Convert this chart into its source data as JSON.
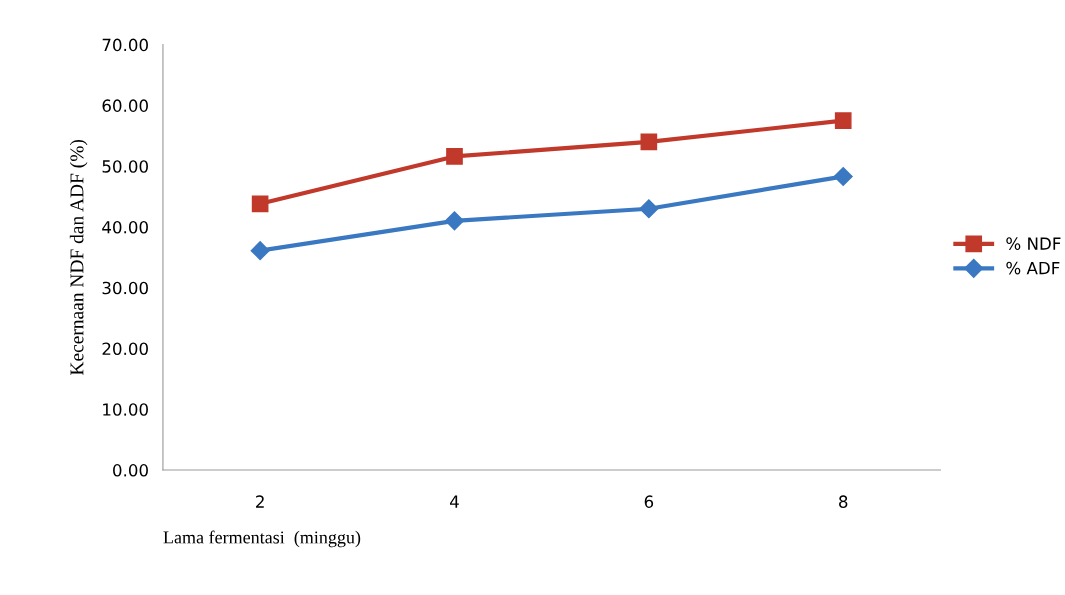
{
  "chart_data": {
    "type": "line",
    "xlabel": "Lama fermentasi  (minggu)",
    "ylabel": "Kecernaan NDF dan ADF (%)",
    "categories": [
      "2",
      "4",
      "6",
      "8"
    ],
    "series": [
      {
        "name": "% NDF",
        "color": "#c0392b",
        "values": [
          43.8,
          51.6,
          54.0,
          57.5
        ],
        "marker": "square"
      },
      {
        "name": "% ADF",
        "color": "#3a78c2",
        "values": [
          36.1,
          41.0,
          43.0,
          48.3
        ],
        "marker": "diamond"
      }
    ],
    "ylim": [
      0,
      70
    ],
    "yticks": [
      {
        "value": 0,
        "label": "0.00"
      },
      {
        "value": 10,
        "label": "10.00"
      },
      {
        "value": 20,
        "label": "20.00"
      },
      {
        "value": 30,
        "label": "30.00"
      },
      {
        "value": 40,
        "label": "40.00"
      },
      {
        "value": 50,
        "label": "50.00"
      },
      {
        "value": 60,
        "label": "60.00"
      },
      {
        "value": 70,
        "label": "70.00"
      }
    ],
    "grid": false,
    "legend": "right",
    "line_style": "solid"
  }
}
